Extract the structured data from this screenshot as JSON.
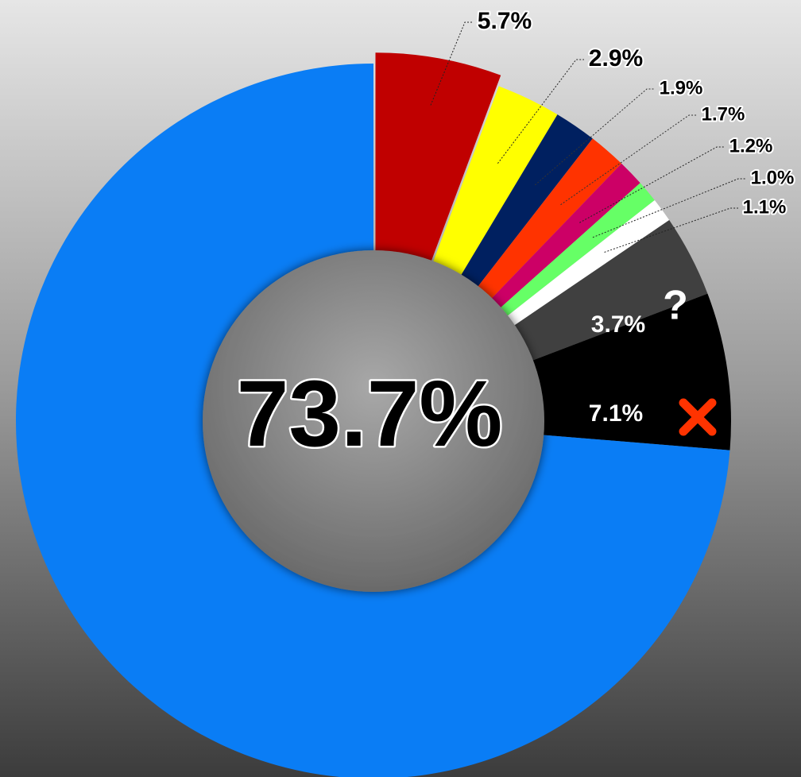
{
  "chart_data": {
    "type": "donut",
    "categories": [
      null,
      null,
      null,
      null,
      null,
      null,
      null,
      null,
      null,
      null
    ],
    "values": [
      5.7,
      2.9,
      1.9,
      1.7,
      1.2,
      1.0,
      1.1,
      3.7,
      7.1,
      73.7
    ],
    "value_labels": [
      "5.7%",
      "2.9%",
      "1.9%",
      "1.7%",
      "1.2%",
      "1.0%",
      "1.1%",
      "3.7%",
      "7.1%",
      "73.7%"
    ],
    "colors": [
      "#c00000",
      "#ffff00",
      "#002060",
      "#ff3300",
      "#cc0066",
      "#66ff66",
      "#ffffff",
      "#404040",
      "#000000",
      "#0a7df5"
    ],
    "annotations": [
      "?"
    ]
  }
}
